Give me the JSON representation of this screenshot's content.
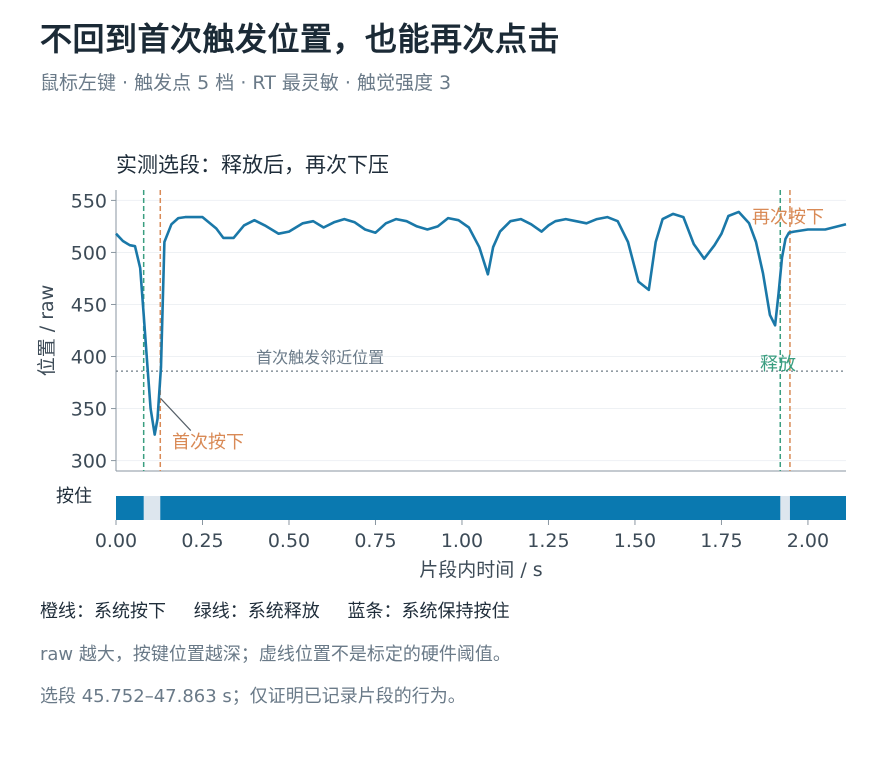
{
  "header": {
    "title": "不回到首次触发位置，也能再次点击",
    "subtitle": "鼠标左键 · 触发点 5 档 · RT 最灵敏 · 触觉强度 3"
  },
  "legend": {
    "orange": "橙线：系统按下",
    "green": "绿线：系统释放",
    "blue": "蓝条：系统保持按住"
  },
  "notes": {
    "line1": "raw 越大，按键位置越深；虚线位置不是标定的硬件阈值。",
    "line2": "选段 45.752–47.863 s；仅证明已记录片段的行为。"
  },
  "colors": {
    "series": "#1a78a8",
    "press": "#d98a56",
    "release": "#3a9e80",
    "hold": "#0a79b0",
    "gap": "#dde6ee"
  },
  "chart_data": {
    "type": "line",
    "title": "实测选段：释放后，再次下压",
    "xlabel": "片段内时间 / s",
    "ylabel": "位置 / raw",
    "xlim": [
      0,
      2.11
    ],
    "ylim": [
      290,
      560
    ],
    "xticks": [
      "0.00",
      "0.25",
      "0.50",
      "0.75",
      "1.00",
      "1.25",
      "1.50",
      "1.75",
      "2.00"
    ],
    "yticks": [
      "300",
      "350",
      "400",
      "450",
      "500",
      "550"
    ],
    "grid": "horizontal",
    "series": [
      {
        "x": [
          0.0,
          0.02,
          0.04,
          0.055,
          0.07,
          0.08,
          0.09,
          0.1,
          0.112,
          0.12,
          0.13,
          0.14,
          0.16,
          0.18,
          0.2,
          0.25,
          0.29,
          0.31,
          0.34,
          0.37,
          0.4,
          0.43,
          0.47,
          0.5,
          0.54,
          0.57,
          0.6,
          0.63,
          0.66,
          0.69,
          0.72,
          0.75,
          0.78,
          0.81,
          0.84,
          0.87,
          0.9,
          0.93,
          0.96,
          0.99,
          1.02,
          1.05,
          1.075,
          1.09,
          1.11,
          1.14,
          1.17,
          1.2,
          1.23,
          1.25,
          1.27,
          1.3,
          1.33,
          1.36,
          1.39,
          1.42,
          1.45,
          1.48,
          1.51,
          1.54,
          1.56,
          1.58,
          1.61,
          1.64,
          1.67,
          1.7,
          1.73,
          1.75,
          1.77,
          1.8,
          1.83,
          1.85,
          1.87,
          1.89,
          1.905,
          1.915,
          1.925,
          1.935,
          1.945,
          1.96,
          2.0,
          2.05,
          2.11
        ],
        "y": [
          518,
          511,
          507,
          506,
          485,
          440,
          395,
          350,
          325,
          340,
          390,
          510,
          527,
          533,
          534,
          534,
          523,
          514,
          514,
          526,
          531,
          526,
          518,
          520,
          528,
          530,
          524,
          529,
          532,
          529,
          522,
          519,
          528,
          532,
          530,
          525,
          522,
          525,
          533,
          531,
          524,
          505,
          479,
          505,
          520,
          530,
          532,
          527,
          520,
          526,
          530,
          532,
          530,
          528,
          532,
          534,
          530,
          510,
          472,
          464,
          510,
          532,
          537,
          534,
          508,
          494,
          507,
          518,
          535,
          539,
          528,
          510,
          480,
          440,
          430,
          460,
          495,
          513,
          519,
          520,
          522,
          522,
          527
        ]
      }
    ],
    "hold_bar": {
      "label": "按住",
      "segments": [
        [
          0.0,
          0.08
        ],
        [
          0.128,
          1.92
        ],
        [
          1.948,
          2.11
        ]
      ]
    },
    "press_lines": [
      0.128,
      1.948
    ],
    "release_lines": [
      0.08,
      1.92
    ],
    "reference": {
      "y": 386,
      "label": "首次触发邻近位置"
    },
    "annotations": [
      {
        "text": "首次按下",
        "kind": "press"
      },
      {
        "text": "再次按下",
        "kind": "press"
      },
      {
        "text": "释放",
        "kind": "release"
      }
    ]
  }
}
